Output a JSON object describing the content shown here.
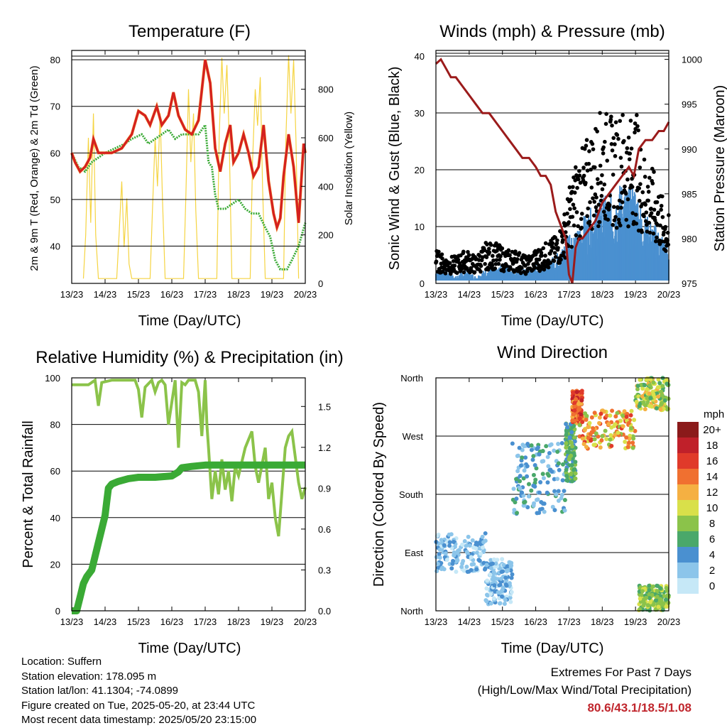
{
  "charts": {
    "temperature": {
      "title": "Temperature (F)",
      "xlabel": "Time (Day/UTC)",
      "ylabel_left": "2m & 9m T (Red, Orange) & 2m Td (Green)",
      "ylabel_right": "Solar Insolation (Yellow)"
    },
    "winds": {
      "title": "Winds (mph) & Pressure (mb)",
      "xlabel": "Time (Day/UTC)",
      "ylabel_left": "Sonic Wind & Gust (Blue, Black)",
      "ylabel_right": "Station Pressure (Maroon)"
    },
    "humidity": {
      "title": "Relative Humidity (%) & Precipitation (in)",
      "xlabel": "Time (Day/UTC)",
      "ylabel_left": "Percent & Total Rainfall"
    },
    "direction": {
      "title": "Wind Direction",
      "xlabel": "Time (Day/UTC)",
      "ylabel_left": "Direction (Colored By Speed)",
      "legend_title": "mph"
    }
  },
  "footer": {
    "location": "Location: Suffern",
    "elevation": "Station elevation: 178.095 m",
    "latlon": "Station lat/lon: 41.1304; -74.0899",
    "created": "Figure created on Tue, 2025-05-20, at 23:44 UTC",
    "recent": "Most recent data timestamp: 2025/05/20 23:15:00",
    "extremes_title": "Extremes For Past 7 Days",
    "extremes_subtitle": "(High/Low/Max Wind/Total Precipitation)",
    "extremes_values": "80.6/43.1/18.5/1.08"
  },
  "chart_data": [
    {
      "id": "temperature",
      "type": "line",
      "x_ticks": [
        "13/23",
        "14/23",
        "15/23",
        "16/23",
        "17/23",
        "18/23",
        "19/23",
        "20/23"
      ],
      "xlim": [
        0,
        7
      ],
      "ylim": [
        32,
        82
      ],
      "y_ticks": [
        40,
        50,
        60,
        70,
        80
      ],
      "y2lim": [
        0,
        960
      ],
      "y2_ticks": [
        0,
        200,
        400,
        600,
        800
      ],
      "colors": {
        "temp": "#d42020",
        "temp9": "#f08020",
        "dew": "#3aaa35",
        "solar": "#f5d442"
      },
      "series": [
        {
          "key": "temp",
          "x": [
            0,
            0.1,
            0.25,
            0.4,
            0.55,
            0.65,
            0.8,
            1.0,
            1.2,
            1.5,
            1.8,
            2.0,
            2.2,
            2.35,
            2.55,
            2.7,
            2.9,
            3.05,
            3.2,
            3.4,
            3.6,
            3.8,
            4.0,
            4.15,
            4.3,
            4.45,
            4.6,
            4.75,
            4.85,
            5.0,
            5.15,
            5.3,
            5.45,
            5.6,
            5.75,
            5.9,
            6.05,
            6.15,
            6.25,
            6.35,
            6.5,
            6.65,
            6.8,
            6.95,
            7.0
          ],
          "y": [
            60,
            58,
            56,
            57,
            59,
            63,
            60,
            60,
            60,
            61,
            64,
            69,
            68,
            66,
            70,
            66,
            68,
            73,
            68,
            65,
            64,
            67,
            80,
            75,
            61,
            56,
            62,
            66,
            58,
            60,
            64,
            60,
            55,
            57,
            66,
            54,
            47,
            44,
            46,
            55,
            64,
            57,
            45,
            62,
            60
          ]
        },
        {
          "key": "dew",
          "x": [
            0,
            0.2,
            0.4,
            0.6,
            0.8,
            1.0,
            1.3,
            1.6,
            1.8,
            2.1,
            2.3,
            2.5,
            2.7,
            2.9,
            3.1,
            3.3,
            3.6,
            3.8,
            4.0,
            4.1,
            4.2,
            4.3,
            4.4,
            4.6,
            4.8,
            5.0,
            5.2,
            5.4,
            5.6,
            5.8,
            5.95,
            6.1,
            6.25,
            6.45,
            6.6,
            6.8,
            7.0
          ],
          "y": [
            60,
            57,
            56,
            58,
            59,
            60,
            61,
            62,
            63,
            64,
            62,
            63,
            64,
            65,
            63,
            64,
            64,
            64,
            66,
            58,
            57,
            51,
            48,
            48,
            49,
            50,
            48,
            47,
            47,
            44,
            42,
            37,
            35,
            35,
            37,
            40,
            45
          ]
        },
        {
          "key": "solar",
          "x": [
            0.35,
            0.42,
            0.5,
            0.57,
            0.65,
            0.72,
            0.8,
            1.35,
            1.42,
            1.5,
            1.57,
            1.65,
            1.72,
            1.8,
            2.35,
            2.42,
            2.5,
            2.57,
            2.65,
            2.72,
            2.8,
            3.35,
            3.42,
            3.5,
            3.57,
            3.65,
            3.72,
            3.8,
            4.35,
            4.42,
            4.5,
            4.57,
            4.65,
            4.72,
            4.8,
            5.35,
            5.42,
            5.5,
            5.57,
            5.65,
            5.72,
            5.8,
            6.35,
            6.42,
            6.5,
            6.57,
            6.65,
            6.72,
            6.8
          ],
          "y": [
            20,
            200,
            600,
            250,
            700,
            200,
            20,
            20,
            200,
            420,
            150,
            350,
            80,
            20,
            20,
            300,
            600,
            400,
            700,
            350,
            20,
            20,
            350,
            800,
            500,
            700,
            300,
            20,
            20,
            600,
            930,
            700,
            900,
            600,
            20,
            20,
            500,
            800,
            650,
            850,
            400,
            20,
            20,
            600,
            940,
            700,
            920,
            600,
            20
          ]
        }
      ]
    },
    {
      "id": "winds",
      "type": "line",
      "x_ticks": [
        "13/23",
        "14/23",
        "15/23",
        "16/23",
        "17/23",
        "18/23",
        "19/23",
        "20/23"
      ],
      "xlim": [
        0,
        7
      ],
      "ylim": [
        0,
        41
      ],
      "y_ticks": [
        0,
        10,
        20,
        30,
        40
      ],
      "y2lim": [
        975,
        1001
      ],
      "y2_ticks": [
        975,
        980,
        985,
        990,
        995,
        1000
      ],
      "colors": {
        "wind": "#4a90d0",
        "gust": "#000000",
        "pressure": "#9b1b1b"
      },
      "series": [
        {
          "key": "pressure",
          "x": [
            0,
            0.15,
            0.3,
            0.45,
            0.6,
            0.8,
            1.0,
            1.2,
            1.4,
            1.6,
            1.8,
            2.0,
            2.2,
            2.4,
            2.6,
            2.8,
            3.0,
            3.15,
            3.3,
            3.45,
            3.6,
            3.7,
            3.8,
            3.9,
            4.0,
            4.1,
            4.2,
            4.3,
            4.4,
            4.6,
            4.8,
            5.0,
            5.2,
            5.4,
            5.6,
            5.8,
            5.95,
            6.1,
            6.3,
            6.5,
            6.7,
            6.85,
            7.0
          ],
          "y": [
            999.5,
            1000,
            999,
            998,
            998,
            997,
            996,
            995,
            994,
            994,
            993,
            992,
            991,
            990,
            989,
            989,
            988,
            987,
            987,
            986,
            983,
            982,
            981,
            980,
            976,
            975,
            979,
            980,
            980,
            981,
            982,
            984,
            985,
            986,
            987,
            988,
            987,
            990,
            991,
            991,
            992,
            992,
            993
          ]
        },
        {
          "key": "wind",
          "x": [
            0,
            0.3,
            0.6,
            0.9,
            1.2,
            1.5,
            1.8,
            2.1,
            2.4,
            2.7,
            3.0,
            3.3,
            3.6,
            3.8,
            4.0,
            4.2,
            4.4,
            4.6,
            4.8,
            5.0,
            5.2,
            5.4,
            5.6,
            5.8,
            6.0,
            6.2,
            6.4,
            6.6,
            6.8,
            7.0
          ],
          "y": [
            2,
            2,
            1,
            2,
            1,
            2,
            2,
            3,
            2,
            2,
            3,
            3,
            4,
            5,
            8,
            7,
            9,
            10,
            11,
            12,
            12,
            13,
            14,
            13,
            14,
            10,
            9,
            8,
            7,
            5
          ]
        },
        {
          "key": "gust",
          "x": [
            0,
            0.3,
            0.6,
            0.9,
            1.2,
            1.5,
            1.8,
            2.1,
            2.4,
            2.7,
            3.0,
            3.3,
            3.6,
            3.8,
            4.0,
            4.2,
            4.4,
            4.6,
            4.8,
            5.0,
            5.2,
            5.4,
            5.6,
            5.8,
            6.0,
            6.2,
            6.4,
            6.6,
            6.8,
            7.0
          ],
          "y": [
            5,
            4,
            4,
            5,
            4,
            6,
            6,
            5,
            5,
            4,
            5,
            6,
            7,
            9,
            14,
            18,
            20,
            22,
            24,
            26,
            25,
            24,
            26,
            24,
            26,
            20,
            18,
            16,
            13,
            10
          ]
        }
      ]
    },
    {
      "id": "humidity",
      "type": "line",
      "x_ticks": [
        "13/23",
        "14/23",
        "15/23",
        "16/23",
        "17/23",
        "18/23",
        "19/23",
        "20/23"
      ],
      "xlim": [
        0,
        7
      ],
      "ylim": [
        0,
        100
      ],
      "y_ticks": [
        0,
        20,
        40,
        60,
        80,
        100
      ],
      "y2lim": [
        0,
        1.71
      ],
      "y2_ticks": [
        "0.0",
        "0.3",
        "0.6",
        "0.9",
        "1.2",
        "1.5"
      ],
      "colors": {
        "rh": "#8bc34a",
        "precip": "#3aaa35"
      },
      "series": [
        {
          "key": "rh",
          "x": [
            0,
            0.5,
            0.7,
            0.8,
            0.9,
            1.2,
            1.6,
            1.9,
            2.0,
            2.1,
            2.2,
            2.4,
            2.5,
            2.6,
            2.7,
            2.8,
            2.9,
            3.1,
            3.2,
            3.3,
            3.4,
            3.5,
            3.7,
            3.8,
            3.9,
            4.0,
            4.05,
            4.1,
            4.2,
            4.3,
            4.4,
            4.5,
            4.6,
            4.7,
            4.8,
            4.9,
            5.0,
            5.2,
            5.4,
            5.5,
            5.6,
            5.8,
            5.9,
            6.0,
            6.1,
            6.2,
            6.4,
            6.5,
            6.6,
            6.8,
            6.9,
            7.0
          ],
          "y": [
            97,
            97,
            99,
            88,
            98,
            99,
            99,
            99,
            95,
            83,
            96,
            99,
            94,
            98,
            99,
            97,
            80,
            99,
            70,
            98,
            97,
            99,
            99,
            94,
            75,
            99,
            80,
            70,
            48,
            60,
            50,
            65,
            52,
            60,
            47,
            62,
            58,
            70,
            77,
            62,
            55,
            70,
            48,
            55,
            40,
            32,
            70,
            75,
            77,
            55,
            48,
            53
          ]
        },
        {
          "key": "precip",
          "x": [
            0,
            0.15,
            0.25,
            0.35,
            0.45,
            0.6,
            0.7,
            0.8,
            0.9,
            1.0,
            1.05,
            1.1,
            1.2,
            1.4,
            1.7,
            2.0,
            2.5,
            3.0,
            3.2,
            3.3,
            3.6,
            4.0,
            5.0,
            6.0,
            7.0
          ],
          "y": [
            0,
            0,
            0.1,
            0.2,
            0.25,
            0.3,
            0.4,
            0.5,
            0.6,
            0.7,
            0.8,
            0.9,
            0.93,
            0.95,
            0.97,
            0.98,
            0.98,
            0.99,
            1.02,
            1.05,
            1.06,
            1.07,
            1.07,
            1.07,
            1.07
          ]
        }
      ]
    },
    {
      "id": "direction",
      "type": "scatter",
      "x_ticks": [
        "13/23",
        "14/23",
        "15/23",
        "16/23",
        "17/23",
        "18/23",
        "19/23",
        "20/23"
      ],
      "xlim": [
        0,
        7
      ],
      "y_ticks": [
        "North",
        "East",
        "South",
        "West",
        "North"
      ],
      "ylim": [
        0,
        360
      ],
      "color_scale": {
        "labels": [
          "0",
          "2",
          "4",
          "6",
          "8",
          "10",
          "12",
          "14",
          "16",
          "18",
          "20+"
        ],
        "colors": [
          "#c6e8f7",
          "#8cc5ea",
          "#4a90d0",
          "#4aa86a",
          "#8bc34a",
          "#d9e04a",
          "#f5b042",
          "#f07030",
          "#e03a2a",
          "#c0202a",
          "#8b1a1a"
        ]
      },
      "clusters": [
        {
          "x": [
            0,
            1.5
          ],
          "dir": [
            60,
            120
          ],
          "speed": [
            0,
            4
          ]
        },
        {
          "x": [
            1.5,
            2.3
          ],
          "dir": [
            10,
            80
          ],
          "speed": [
            0,
            4
          ]
        },
        {
          "x": [
            2.3,
            3.9
          ],
          "dir": [
            150,
            260
          ],
          "speed": [
            1,
            6
          ]
        },
        {
          "x": [
            3.9,
            4.2
          ],
          "dir": [
            200,
            290
          ],
          "speed": [
            4,
            8
          ]
        },
        {
          "x": [
            4.1,
            4.4
          ],
          "dir": [
            290,
            340
          ],
          "speed": [
            12,
            18
          ]
        },
        {
          "x": [
            4.3,
            6.0
          ],
          "dir": [
            250,
            310
          ],
          "speed": [
            8,
            16
          ]
        },
        {
          "x": [
            6.0,
            7.0
          ],
          "dir": [
            310,
            360
          ],
          "speed": [
            6,
            12
          ]
        },
        {
          "x": [
            6.1,
            7.0
          ],
          "dir": [
            0,
            40
          ],
          "speed": [
            6,
            10
          ]
        }
      ]
    }
  ]
}
